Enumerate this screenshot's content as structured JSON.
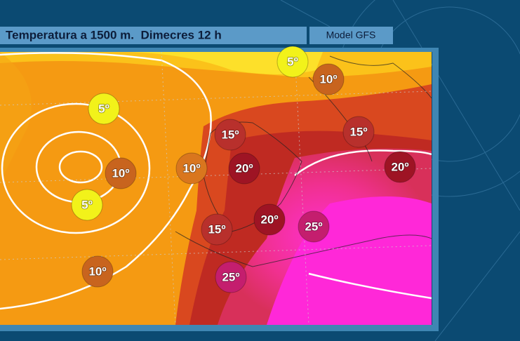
{
  "header": {
    "title": "Temperatura a 1500 m.  Dimecres 12 h",
    "model": "Model GFS"
  },
  "labels": [
    "5º",
    "10º",
    "5º",
    "15º",
    "15º",
    "10º",
    "20º",
    "10º",
    "20º",
    "5º",
    "20º",
    "25º",
    "15º",
    "10º",
    "25º"
  ]
}
